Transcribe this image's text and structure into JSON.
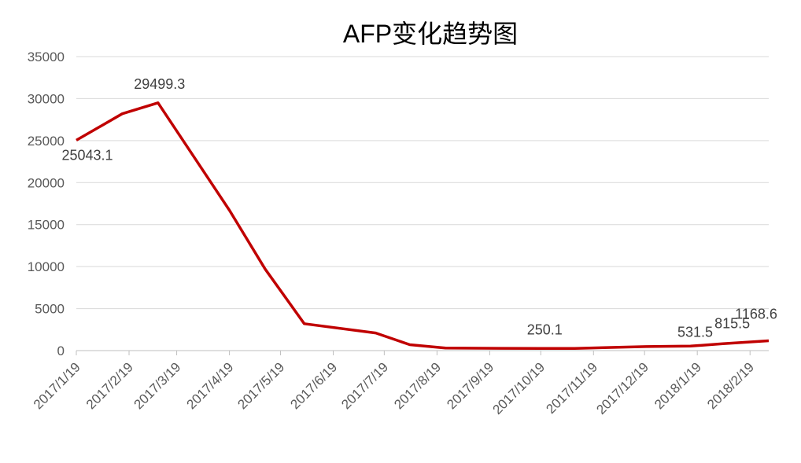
{
  "chart_data": {
    "type": "line",
    "title": "AFP变化趋势图",
    "x": [
      "2017/1/19",
      "2017/2/15",
      "2017/3/8",
      "2017/4/19",
      "2017/5/10",
      "2017/6/2",
      "2017/7/14",
      "2017/8/3",
      "2017/8/24",
      "2017/10/19",
      "2017/11/8",
      "2017/12/20",
      "2018/1/15",
      "2018/2/3",
      "2018/3/2"
    ],
    "series": [
      {
        "name": "AFP",
        "color": "#c00000",
        "values": [
          25043.1,
          28200,
          29499.3,
          16700,
          9700,
          3200,
          2100,
          700,
          300,
          250.1,
          260,
          480,
          531.5,
          815.5,
          1168.6
        ]
      }
    ],
    "labeled_points": [
      0,
      2,
      9,
      12,
      13,
      14
    ],
    "xlim": [
      "2017/1/19",
      "2018/3/2"
    ],
    "xticks": [
      "2017/1/19",
      "2017/2/19",
      "2017/3/19",
      "2017/4/19",
      "2017/5/19",
      "2017/6/19",
      "2017/7/19",
      "2017/8/19",
      "2017/9/19",
      "2017/10/19",
      "2017/11/19",
      "2017/12/19",
      "2018/1/19",
      "2018/2/19"
    ],
    "ylim": [
      0,
      35000
    ],
    "yticks": [
      0,
      5000,
      10000,
      15000,
      20000,
      25000,
      30000,
      35000
    ],
    "grid": true
  }
}
